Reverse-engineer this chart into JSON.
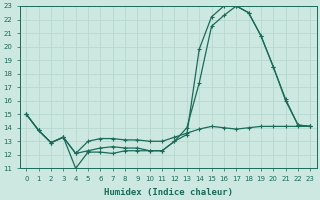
{
  "title": "",
  "xlabel": "Humidex (Indice chaleur)",
  "xlim": [
    -0.5,
    23.5
  ],
  "ylim": [
    11,
    23
  ],
  "xticks": [
    0,
    1,
    2,
    3,
    4,
    5,
    6,
    7,
    8,
    9,
    10,
    11,
    12,
    13,
    14,
    15,
    16,
    17,
    18,
    19,
    20,
    21,
    22,
    23
  ],
  "yticks": [
    11,
    12,
    13,
    14,
    15,
    16,
    17,
    18,
    19,
    20,
    21,
    22,
    23
  ],
  "background_color": "#cde8e0",
  "line_color": "#1a6b5a",
  "grid_color": "#b8d8d0",
  "line1_y": [
    15,
    13.8,
    12.9,
    13.3,
    12.1,
    12.3,
    12.5,
    12.6,
    12.5,
    12.5,
    12.3,
    12.3,
    13.0,
    14.0,
    17.3,
    21.5,
    22.3,
    23.0,
    22.5,
    20.8,
    18.5,
    16.0,
    14.2,
    14.1
  ],
  "line2_y": [
    15,
    13.8,
    12.9,
    13.3,
    11.0,
    12.2,
    12.2,
    12.1,
    12.3,
    12.3,
    12.3,
    12.3,
    13.0,
    13.5,
    19.8,
    22.2,
    23.0,
    23.0,
    22.5,
    20.8,
    18.5,
    16.1,
    14.2,
    14.1
  ],
  "line3_y": [
    15,
    13.8,
    12.9,
    13.3,
    12.1,
    13.0,
    13.2,
    13.2,
    13.1,
    13.1,
    13.0,
    13.0,
    13.3,
    13.6,
    13.9,
    14.1,
    14.0,
    13.9,
    14.0,
    14.1,
    14.1,
    14.1,
    14.1,
    14.1
  ]
}
